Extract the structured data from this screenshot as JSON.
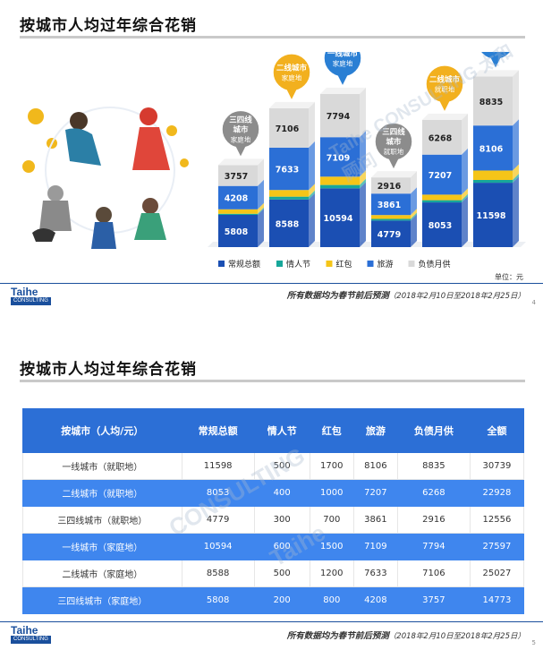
{
  "slide1": {
    "title": "按城市人均过年综合花销",
    "unit": "单位：元",
    "footnote_main": "所有数据均为春节前后预测",
    "footnote_range": "（2018年2月10日至2018年2月25日）",
    "page": "4",
    "logo_top": "Taihe",
    "logo_bottom": "CONSULTING",
    "watermark": "Taihe CONSULTING 太和顾问"
  },
  "chart_data": {
    "type": "bar",
    "stacked": true,
    "categories": [
      "三四线城市 家庭地",
      "二线城市 家庭地",
      "一线城市 家庭地",
      "三四线城市 就职地",
      "二线城市 就职地",
      "一线城市 就职地"
    ],
    "callouts": [
      {
        "lines": [
          "三四线",
          "城市"
        ],
        "sub": "家庭地",
        "color": "#8c8c8c"
      },
      {
        "lines": [
          "二线城市"
        ],
        "sub": "家庭地",
        "color": "#f2b01e"
      },
      {
        "lines": [
          "一线城市"
        ],
        "sub": "家庭地",
        "color": "#2a7fd4"
      },
      {
        "lines": [
          "三四线",
          "城市"
        ],
        "sub": "就职地",
        "color": "#8c8c8c"
      },
      {
        "lines": [
          "二线城市"
        ],
        "sub": "就职地",
        "color": "#f2b01e"
      },
      {
        "lines": [
          "一线城市"
        ],
        "sub": "就职地",
        "color": "#2a7fd4"
      }
    ],
    "series": [
      {
        "name": "常规总额",
        "color": "#1b4fb3",
        "values": [
          5808,
          8588,
          10594,
          4779,
          8053,
          11598
        ]
      },
      {
        "name": "情人节",
        "color": "#17a79a",
        "values": [
          200,
          500,
          600,
          300,
          400,
          500
        ]
      },
      {
        "name": "红包",
        "color": "#f5c518",
        "values": [
          800,
          1200,
          1500,
          700,
          1000,
          1700
        ]
      },
      {
        "name": "旅游",
        "color": "#2b6fd6",
        "values": [
          4208,
          7633,
          7109,
          3861,
          7207,
          8106
        ]
      },
      {
        "name": "负债月供",
        "color": "#d9d9d9",
        "values": [
          3757,
          7106,
          7794,
          2916,
          6268,
          8835
        ]
      }
    ],
    "labeled_series": [
      "常规总额",
      "旅游",
      "负债月供"
    ]
  },
  "slide2": {
    "title": "按城市人均过年综合花销",
    "footnote_main": "所有数据均为春节前后预测",
    "footnote_range": "（2018年2月10日至2018年2月25日）",
    "page": "5",
    "logo_top": "Taihe",
    "logo_bottom": "CONSULTING",
    "table": {
      "headers": [
        "按城市（人均/元）",
        "常规总额",
        "情人节",
        "红包",
        "旅游",
        "负债月供",
        "全额"
      ],
      "rows": [
        [
          "一线城市（就职地）",
          "11598",
          "500",
          "1700",
          "8106",
          "8835",
          "30739"
        ],
        [
          "二线城市（就职地）",
          "8053",
          "400",
          "1000",
          "7207",
          "6268",
          "22928"
        ],
        [
          "三四线城市（就职地）",
          "4779",
          "300",
          "700",
          "3861",
          "2916",
          "12556"
        ],
        [
          "一线城市（家庭地）",
          "10594",
          "600",
          "1500",
          "7109",
          "7794",
          "27597"
        ],
        [
          "二线城市（家庭地）",
          "8588",
          "500",
          "1200",
          "7633",
          "7106",
          "25027"
        ],
        [
          "三四线城市（家庭地）",
          "5808",
          "200",
          "800",
          "4208",
          "3757",
          "14773"
        ]
      ]
    }
  }
}
